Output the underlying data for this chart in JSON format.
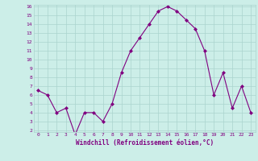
{
  "x": [
    0,
    1,
    2,
    3,
    4,
    5,
    6,
    7,
    8,
    9,
    10,
    11,
    12,
    13,
    14,
    15,
    16,
    17,
    18,
    19,
    20,
    21,
    22,
    23
  ],
  "y": [
    6.5,
    6.0,
    4.0,
    4.5,
    1.5,
    4.0,
    4.0,
    3.0,
    5.0,
    8.5,
    11.0,
    12.5,
    14.0,
    15.5,
    16.0,
    15.5,
    14.5,
    13.5,
    11.0,
    6.0,
    8.5,
    4.5,
    7.0,
    4.0
  ],
  "line_color": "#800080",
  "marker": "D",
  "marker_size": 2,
  "bg_color": "#cceee8",
  "grid_color": "#aad4ce",
  "xlabel": "Windchill (Refroidissement éolien,°C)",
  "xlabel_color": "#800080",
  "tick_color": "#800080",
  "ylim": [
    2,
    16
  ],
  "xlim": [
    -0.5,
    23.5
  ],
  "yticks": [
    2,
    3,
    4,
    5,
    6,
    7,
    8,
    9,
    10,
    11,
    12,
    13,
    14,
    15,
    16
  ],
  "xticks": [
    0,
    1,
    2,
    3,
    4,
    5,
    6,
    7,
    8,
    9,
    10,
    11,
    12,
    13,
    14,
    15,
    16,
    17,
    18,
    19,
    20,
    21,
    22,
    23
  ]
}
